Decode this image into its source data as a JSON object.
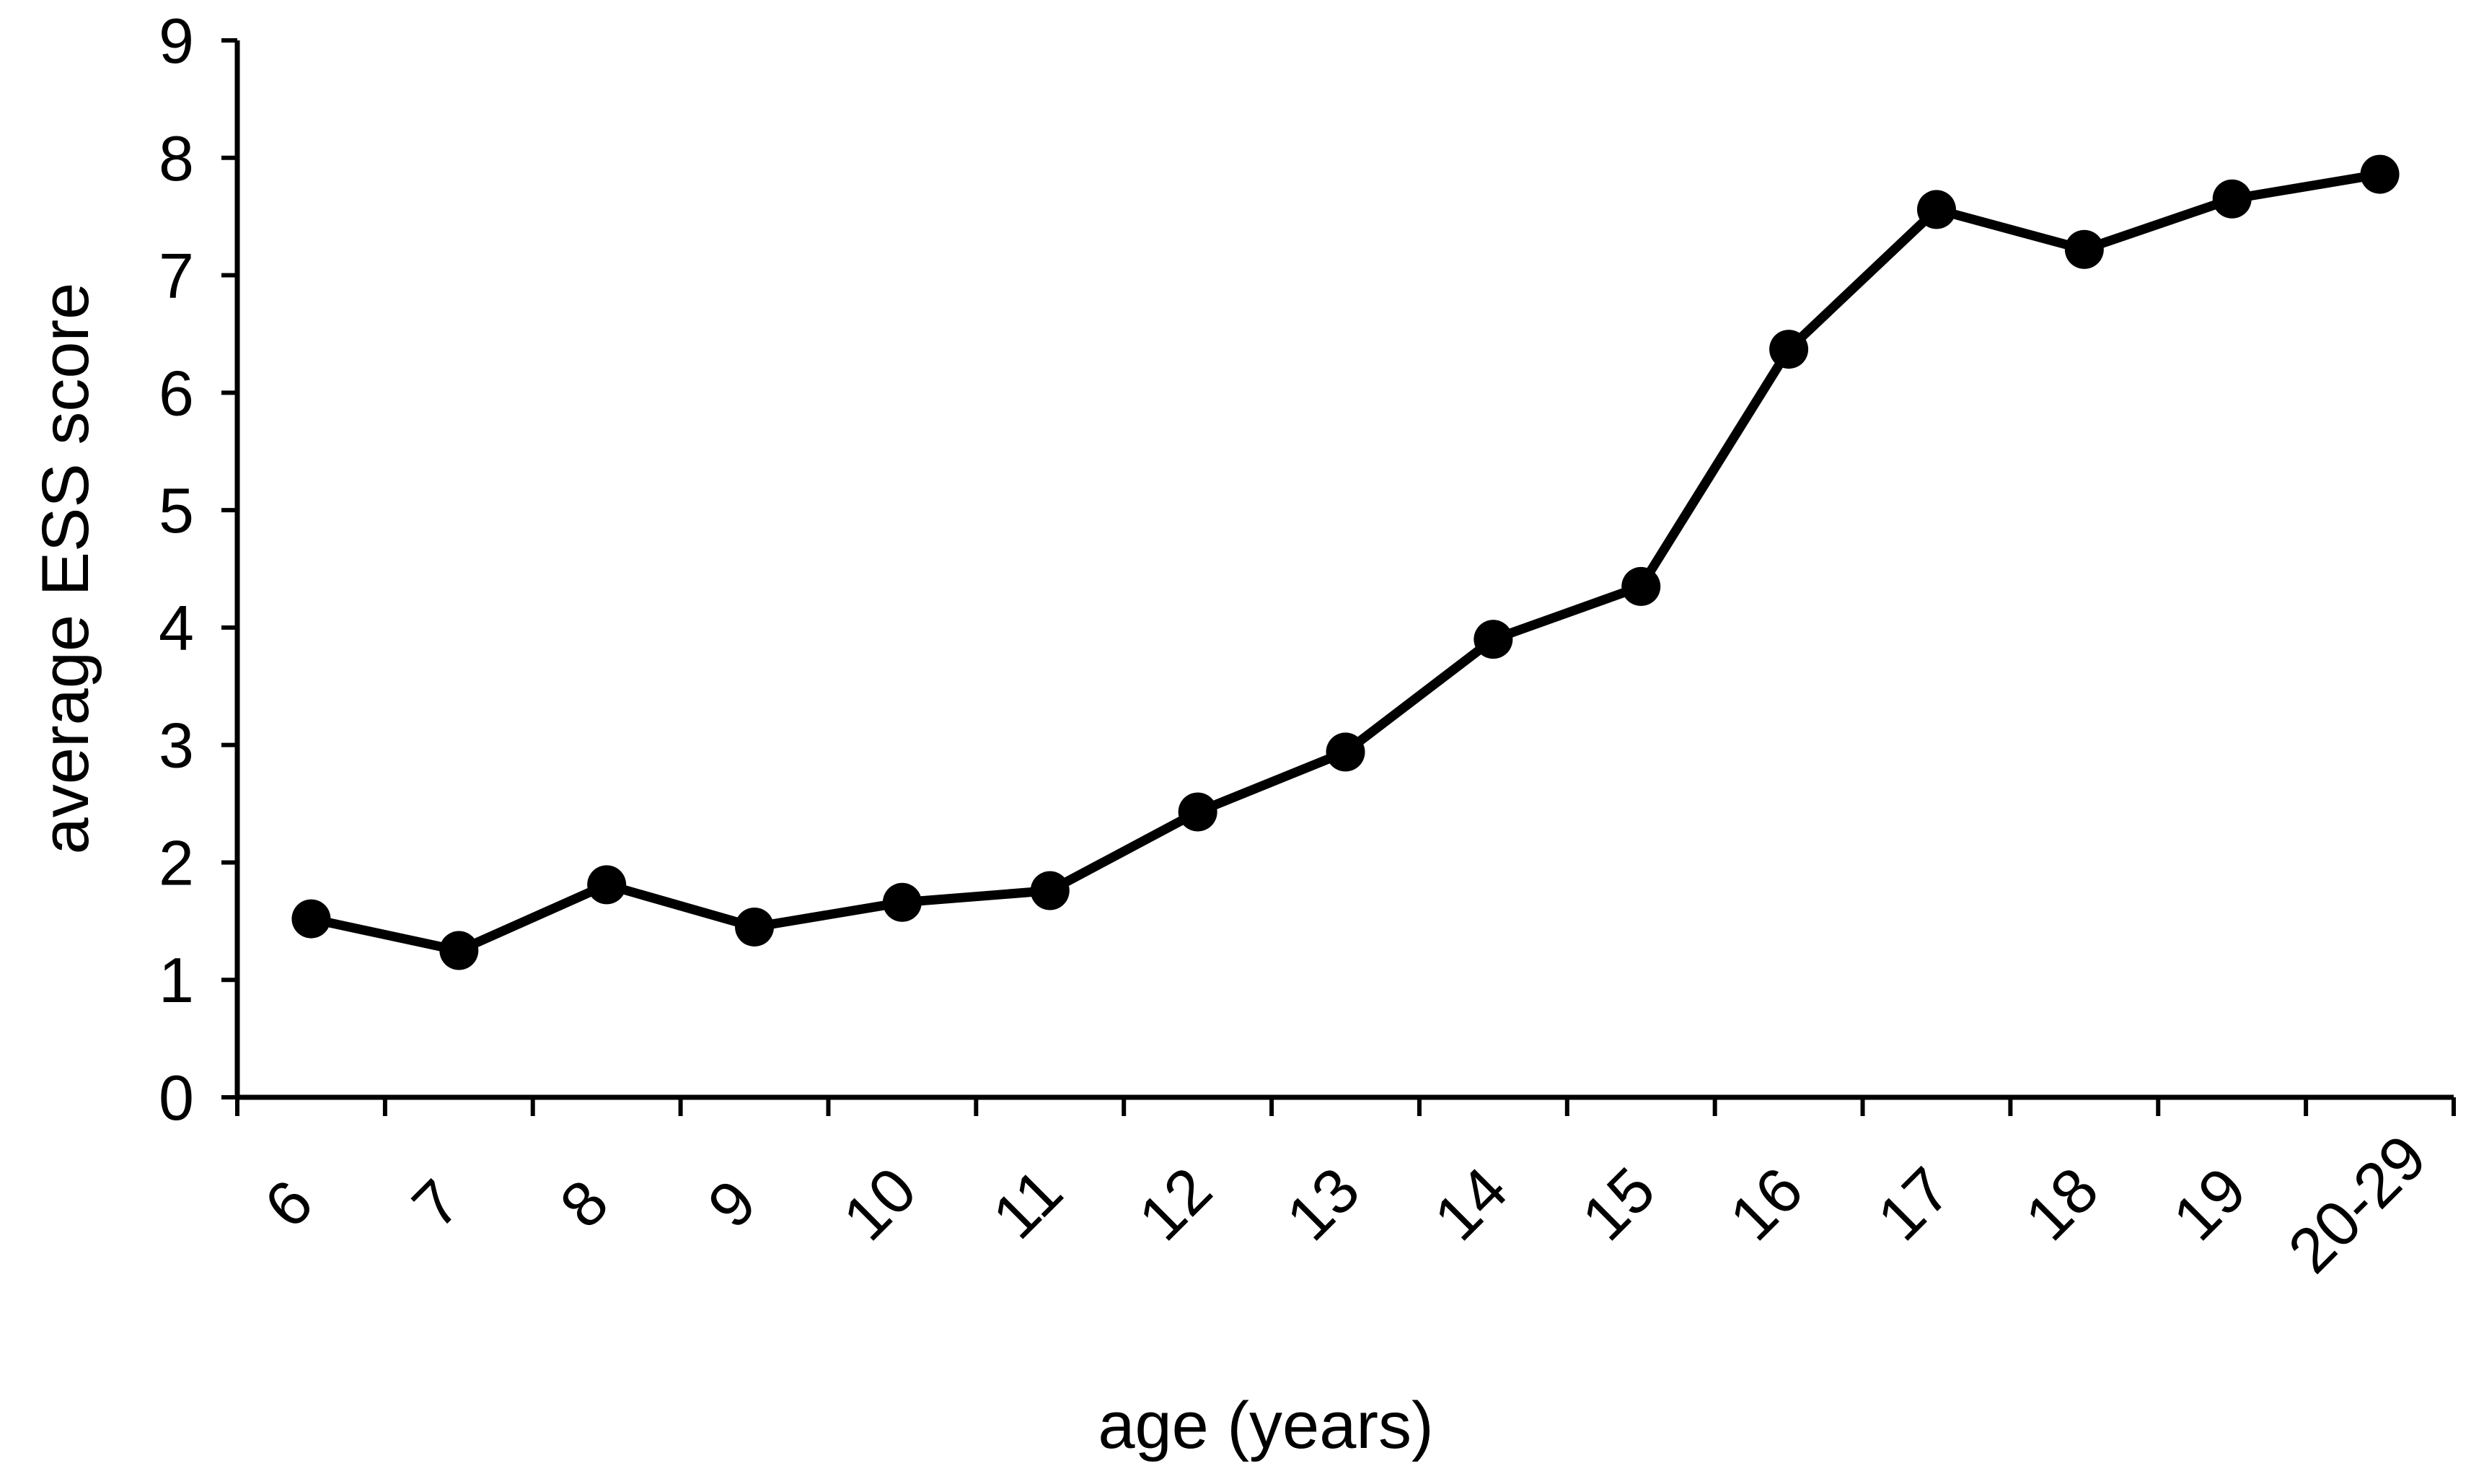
{
  "chart_data": {
    "type": "line",
    "title": "",
    "xlabel": "age (years)",
    "ylabel": "average ESS score",
    "categories": [
      "6",
      "7",
      "8",
      "9",
      "10",
      "11",
      "12",
      "13",
      "14",
      "15",
      "16",
      "17",
      "18",
      "19",
      "20-29"
    ],
    "series": [
      {
        "values": [
          1.52,
          1.25,
          1.81,
          1.45,
          1.66,
          1.76,
          2.43,
          2.94,
          3.9,
          4.35,
          6.37,
          7.56,
          7.22,
          7.65,
          7.86
        ]
      }
    ],
    "ylim": [
      0,
      9
    ],
    "yticks": [
      "0",
      "1",
      "2",
      "3",
      "4",
      "5",
      "6",
      "7",
      "8",
      "9"
    ],
    "grid": false,
    "legend": "none",
    "colors": {
      "line": "#000000",
      "marker": "#000000",
      "axis": "#000000"
    }
  }
}
